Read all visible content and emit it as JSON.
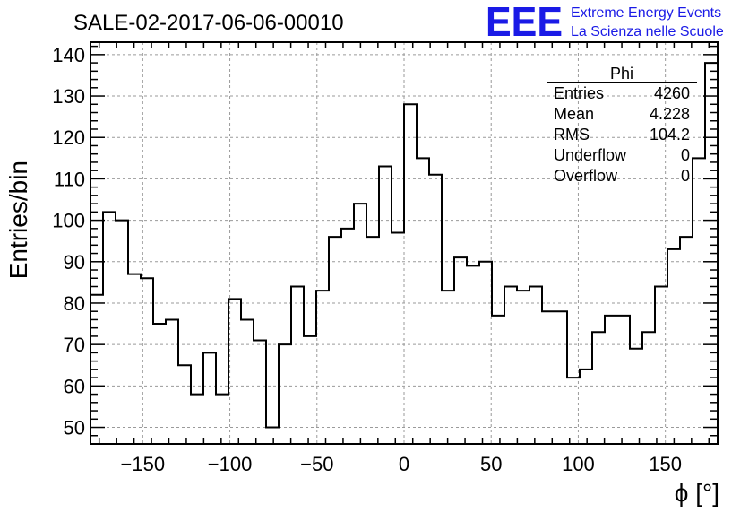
{
  "chart_data": {
    "type": "bar",
    "style": "histogram",
    "title": "SALE-02-2017-06-06-00010",
    "xlabel": "ϕ [°]",
    "ylabel": "Entries/bin",
    "xlim": [
      -180,
      180
    ],
    "ylim": [
      46,
      143
    ],
    "grid": true,
    "bin_width": 7.2,
    "values": [
      82,
      102,
      100,
      87,
      86,
      75,
      76,
      65,
      58,
      68,
      58,
      81,
      76,
      71,
      50,
      70,
      84,
      72,
      83,
      96,
      98,
      104,
      96,
      113,
      97,
      128,
      115,
      111,
      83,
      91,
      89,
      90,
      77,
      84,
      83,
      84,
      78,
      78,
      62,
      64,
      73,
      77,
      77,
      69,
      73,
      84,
      93,
      96,
      115,
      138
    ],
    "x_ticks": [
      -150,
      -100,
      -50,
      0,
      50,
      100,
      150
    ],
    "x_tick_labels": [
      "−150",
      "−100",
      "−50",
      "0",
      "50",
      "100",
      "150"
    ],
    "y_ticks": [
      50,
      60,
      70,
      80,
      90,
      100,
      110,
      120,
      130,
      140
    ],
    "y_tick_labels": [
      "50",
      "60",
      "70",
      "80",
      "90",
      "100",
      "110",
      "120",
      "130",
      "140"
    ]
  },
  "stats": {
    "title": "Phi",
    "rows": [
      {
        "label": "Entries",
        "value": "4260"
      },
      {
        "label": "Mean",
        "value": "4.228"
      },
      {
        "label": "RMS",
        "value": "104.2"
      },
      {
        "label": "Underflow",
        "value": "0"
      },
      {
        "label": "Overflow",
        "value": "0"
      }
    ]
  },
  "logo": {
    "mark": "EEE",
    "line1": "Extreme Energy Events",
    "line2": "La Scienza nelle Scuole",
    "color": "#1a1ae6"
  }
}
